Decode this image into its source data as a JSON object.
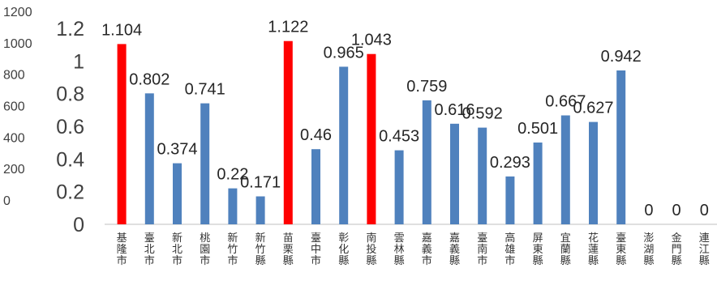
{
  "chart_data": {
    "type": "bar",
    "categories": [
      "基隆市",
      "臺北市",
      "新北市",
      "桃園市",
      "新竹市",
      "新竹縣",
      "苗栗縣",
      "臺中市",
      "彰化縣",
      "南投縣",
      "雲林縣",
      "嘉義市",
      "嘉義縣",
      "臺南市",
      "高雄市",
      "屏東縣",
      "宜蘭縣",
      "花蓮縣",
      "臺東縣",
      "澎湖縣",
      "金門縣",
      "連江縣"
    ],
    "values": [
      1.104,
      0.802,
      0.374,
      0.741,
      0.22,
      0.171,
      1.122,
      0.46,
      0.965,
      1.043,
      0.453,
      0.759,
      0.616,
      0.592,
      0.293,
      0.501,
      0.667,
      0.627,
      0.942,
      0,
      0,
      0
    ],
    "value_labels": [
      "1.104",
      "0.802",
      "0.374",
      "0.741",
      "0.22",
      "0.171",
      "1.122",
      "0.46",
      "0.965",
      "1.043",
      "0.453",
      "0.759",
      "0.616",
      "0.592",
      "0.293",
      "0.501",
      "0.667",
      "0.627",
      "0.942",
      "0",
      "0",
      "0"
    ],
    "highlighted": [
      true,
      false,
      false,
      false,
      false,
      false,
      true,
      false,
      false,
      true,
      false,
      false,
      false,
      false,
      false,
      false,
      false,
      false,
      false,
      false,
      false,
      false
    ],
    "ylim": [
      0,
      1.2
    ],
    "yticks": [
      "0",
      "0.2",
      "0.4",
      "0.6",
      "0.8",
      "1",
      "1.2"
    ],
    "secondary_ylim": [
      0,
      1200
    ],
    "secondary_yticks": [
      "0",
      "200",
      "400",
      "600",
      "800",
      "1000",
      "1200"
    ],
    "colors": {
      "bar": "#4F81BD",
      "highlight": "#FF0000"
    },
    "title": "",
    "xlabel": "",
    "ylabel": "",
    "grid": false,
    "legend": "none"
  }
}
